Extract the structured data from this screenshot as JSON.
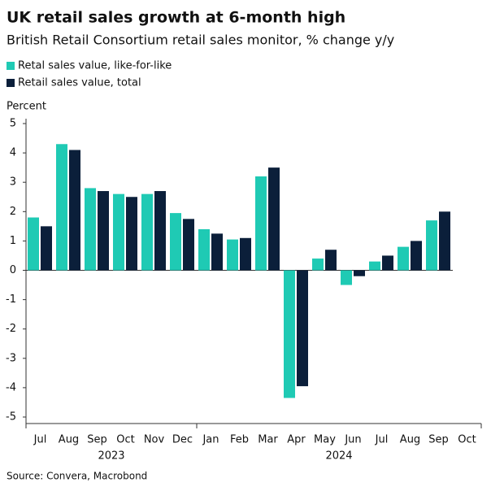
{
  "chart_data": {
    "type": "bar",
    "title": "UK retail sales growth at 6-month high",
    "subtitle": "British Retail Consortium retail sales monitor, % change y/y",
    "y_label": "Percent",
    "source": "Source: Convera, Macrobond",
    "categories": [
      "Jul",
      "Aug",
      "Sep",
      "Oct",
      "Nov",
      "Dec",
      "Jan",
      "Feb",
      "Mar",
      "Apr",
      "May",
      "Jun",
      "Jul",
      "Aug",
      "Sep",
      "Oct"
    ],
    "years": [
      "2023",
      "2024"
    ],
    "series": [
      {
        "name": "Retal sales value, like-for-like",
        "color": "#1fcab4",
        "values": [
          1.8,
          4.3,
          2.8,
          2.6,
          2.6,
          1.95,
          1.4,
          1.05,
          3.2,
          -4.35,
          0.4,
          -0.5,
          0.3,
          0.8,
          1.7,
          null
        ]
      },
      {
        "name": "Retail sales value, total",
        "color": "#0b1f3a",
        "values": [
          1.5,
          4.1,
          2.7,
          2.5,
          2.7,
          1.75,
          1.25,
          1.1,
          3.5,
          -3.95,
          0.7,
          -0.2,
          0.5,
          1.0,
          2.0,
          null
        ]
      }
    ],
    "ylim": [
      -5,
      5
    ],
    "yticks": [
      -5,
      -4,
      -3,
      -2,
      -1,
      0,
      1,
      2,
      3,
      4,
      5
    ],
    "grid": false
  }
}
